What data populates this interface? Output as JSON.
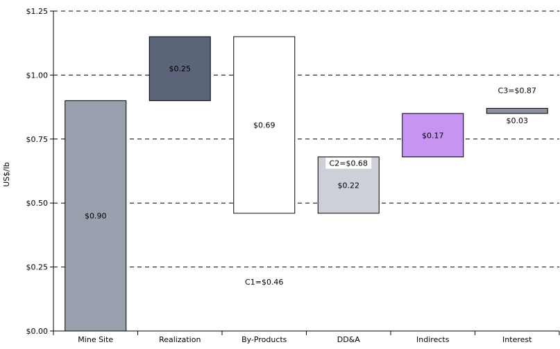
{
  "chart_data": {
    "type": "bar",
    "subtype": "waterfall",
    "ylabel": "US$/lb",
    "ylim": [
      0,
      1.25
    ],
    "grid": "dashed horizontal lines at $0.25 intervals",
    "y_ticks": [
      "$0.00",
      "$0.25",
      "$0.50",
      "$0.75",
      "$1.00",
      "$1.25"
    ],
    "y_tick_values": [
      0,
      0.25,
      0.5,
      0.75,
      1.0,
      1.25
    ],
    "categories": [
      "Mine Site",
      "Realization",
      "By-Products",
      "DD&A",
      "Indirects",
      "Interest"
    ],
    "bars": [
      {
        "category": "Mine Site",
        "start": 0.0,
        "end": 0.9,
        "label": "$0.90",
        "color": "#9aa0ad"
      },
      {
        "category": "Realization",
        "start": 0.9,
        "end": 1.15,
        "label": "$0.25",
        "color": "#5b6479"
      },
      {
        "category": "By-Products",
        "start": 0.46,
        "end": 1.15,
        "label": "$0.69",
        "color": "#ffffff"
      },
      {
        "category": "DD&A",
        "start": 0.46,
        "end": 0.68,
        "label": "$0.22",
        "color": "#cdd0d6"
      },
      {
        "category": "Indirects",
        "start": 0.68,
        "end": 0.85,
        "label": "$0.17",
        "color": "#c695f2"
      },
      {
        "category": "Interest",
        "start": 0.85,
        "end": 0.87,
        "label": "$0.03",
        "color": "#8a90a0"
      }
    ],
    "annotations": [
      "C1=$0.46",
      "C2=$0.68",
      "C3=$0.87"
    ]
  }
}
